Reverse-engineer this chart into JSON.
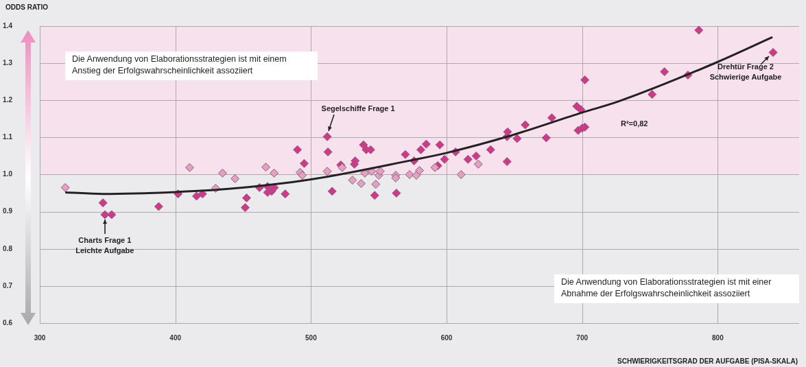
{
  "chart_data": {
    "type": "scatter",
    "xlabel": "SCHWIERIGKEITSGRAD DER AUFGABE (PISA-SKALA)",
    "ylabel": "ODDS RATIO",
    "xlim": [
      300,
      860
    ],
    "xticks": [
      300,
      400,
      500,
      600,
      700,
      800
    ],
    "ylim": [
      0.6,
      1.4
    ],
    "yticks": [
      0.6,
      0.7,
      0.8,
      0.9,
      {
        "value": 1,
        "label": "1.0"
      },
      1.1,
      1.2,
      1.3,
      1.4
    ],
    "grid": true,
    "legend": false,
    "marker": "diamond",
    "bands": [
      {
        "axis": "y",
        "from": 1.0,
        "to": 1.4,
        "color": "#f7e1ed"
      }
    ],
    "series": [
      {
        "color": "#d9338c",
        "x": [
          346.6,
          348,
          353,
          387.7,
          402,
          415.6,
          420,
          451.5,
          452.5,
          462,
          468,
          468,
          471,
          473,
          481,
          490,
          495,
          512,
          512.5,
          515.6,
          522,
          532,
          532.6,
          538.7,
          540.7,
          544,
          547,
          563,
          569.6,
          576,
          581,
          585,
          593.5,
          595,
          598.5,
          606.6,
          615.8,
          621.8,
          632.5,
          644.6,
          645,
          644.6,
          652,
          658,
          673.5,
          677.6,
          696,
          699,
          697,
          700,
          702,
          702,
          751.6,
          760.7,
          778,
          786,
          840.8
        ],
        "values": [
          0.924,
          0.892,
          0.892,
          0.914,
          0.948,
          0.942,
          0.948,
          0.911,
          0.937,
          0.965,
          0.968,
          0.952,
          0.955,
          0.965,
          0.948,
          1.067,
          1.03,
          1.102,
          1.061,
          0.955,
          1.026,
          1.028,
          1.037,
          1.08,
          1.067,
          1.067,
          0.944,
          0.95,
          1.054,
          1.037,
          1.067,
          1.082,
          1.024,
          1.08,
          1.041,
          1.061,
          1.041,
          1.05,
          1.067,
          1.035,
          1.115,
          1.102,
          1.097,
          1.134,
          1.099,
          1.153,
          1.184,
          1.175,
          1.119,
          1.125,
          1.128,
          1.255,
          1.216,
          1.277,
          1.268,
          1.389,
          1.329
        ]
      },
      {
        "color": "#eb9cc4",
        "x": [
          318.8,
          410.5,
          429.7,
          434.8,
          444,
          466.7,
          472.8,
          492,
          493.6,
          512,
          523,
          530.6,
          537,
          539.7,
          544.8,
          547.8,
          550,
          551,
          562.5,
          562.5,
          572.7,
          577.7,
          580,
          591.4,
          610.7,
          623.4
        ],
        "values": [
          0.965,
          1.019,
          0.963,
          1.004,
          0.989,
          1.02,
          1.004,
          1.006,
          0.998,
          1.009,
          1.019,
          0.985,
          0.976,
          1.004,
          1.009,
          0.974,
          0.998,
          1.009,
          0.998,
          0.991,
          1.0,
          0.998,
          1.011,
          1.019,
          1.0,
          1.028
        ]
      },
      {
        "type": "line",
        "color": "#222222",
        "marker": "none",
        "x": [
          318.8,
          346.6,
          400,
          437.9,
          500,
          574.7,
          599.5,
          644.6,
          699.9,
          726.7,
          799.7,
          840.3
        ],
        "values": [
          0.952,
          0.948,
          0.953,
          0.961,
          0.987,
          1.039,
          1.058,
          1.102,
          1.167,
          1.197,
          1.303,
          1.37
        ]
      }
    ],
    "annotations": [
      "Die Anwendung von Elaborationsstrategien ist mit einem Anstieg der Erfolgswahrscheinlichkeit assoziiert",
      "Die Anwendung von Elaborationsstrategien ist mit einer Abnahme der Erfolgswahrscheinlichkeit assoziiert",
      "R²=0,82",
      {
        "text": "Segelschiffe Frage 1",
        "x": 512,
        "y": 1.102
      },
      {
        "text": "Charts Frage 1 Leichte Aufgabe",
        "x": 348,
        "y": 0.892
      },
      {
        "text": "Drehtür Frage 2 Schwierige Aufgabe",
        "x": 840.8,
        "y": 1.329
      }
    ]
  }
}
